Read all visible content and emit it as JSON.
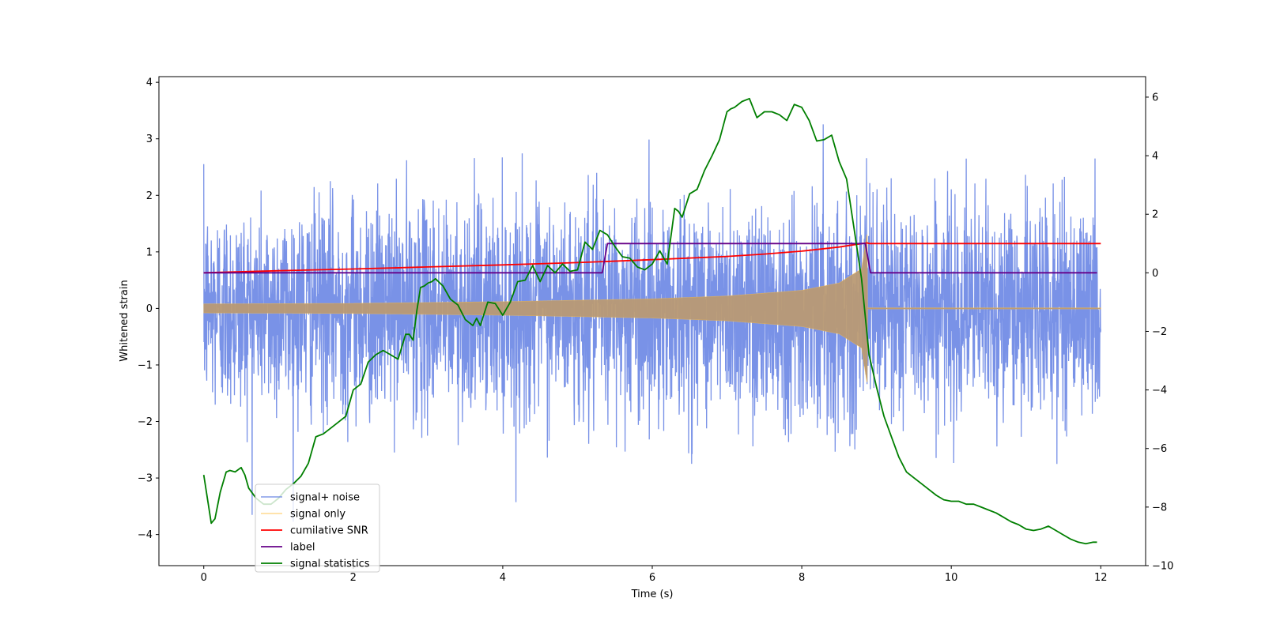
{
  "chart_data": {
    "type": "line",
    "title": "",
    "xlabel": "Time (s)",
    "ylabel": "Whitened strain",
    "y2label": "",
    "xlim": [
      -0.6,
      12.6
    ],
    "ylim": [
      -4.55,
      4.1
    ],
    "y2lim": [
      -10,
      6.7
    ],
    "xticks": [
      0,
      2,
      4,
      6,
      8,
      10,
      12
    ],
    "yticks": [
      -4,
      -3,
      -2,
      -1,
      0,
      1,
      2,
      3,
      4
    ],
    "y2ticks": [
      -10,
      -8,
      -6,
      -4,
      -2,
      0,
      2,
      4,
      6
    ],
    "grid": false,
    "legend_position": "lower-left",
    "colors": {
      "signal_noise": "#6a86e4",
      "signal_only": "#ffbf40",
      "signal_overlap": "#b99a74",
      "snr": "#ff0000",
      "label": "#660088",
      "statistics": "#007f00"
    },
    "series": [
      {
        "name": "signal+ noise",
        "axis": "left",
        "color": "#6a86e4",
        "description_values": {
          "x_range": [
            0,
            12
          ],
          "approx_range": [
            -4.15,
            3.7
          ]
        }
      },
      {
        "name": "signal only",
        "axis": "left",
        "color": "#ffbf40",
        "envelope": {
          "x": [
            0,
            2,
            4,
            6,
            7,
            8,
            8.5,
            8.8,
            8.87
          ],
          "amp": [
            0.08,
            0.09,
            0.12,
            0.17,
            0.22,
            0.32,
            0.45,
            0.7,
            1.3
          ],
          "zero_after": 8.88
        }
      },
      {
        "name": "cumilative SNR",
        "axis": "right",
        "x": [
          0,
          1,
          2,
          3,
          4,
          5,
          6,
          7,
          7.5,
          8,
          8.5,
          8.8,
          8.88,
          8.9,
          12
        ],
        "values": [
          0,
          0.07,
          0.13,
          0.2,
          0.27,
          0.35,
          0.45,
          0.56,
          0.64,
          0.74,
          0.88,
          1.0,
          1.02,
          1.0,
          1.0
        ]
      },
      {
        "name": "label",
        "axis": "right",
        "x": [
          0,
          5.33,
          5.4,
          8.85,
          8.92,
          11.95
        ],
        "values": [
          0,
          0,
          1,
          1,
          0,
          0
        ]
      },
      {
        "name": "signal statistics",
        "axis": "right",
        "x": [
          0,
          0.1,
          0.15,
          0.22,
          0.3,
          0.35,
          0.42,
          0.5,
          0.55,
          0.6,
          0.7,
          0.8,
          0.9,
          1.0,
          1.1,
          1.2,
          1.3,
          1.4,
          1.5,
          1.6,
          1.7,
          1.8,
          1.85,
          1.9,
          2.0,
          2.1,
          2.2,
          2.3,
          2.4,
          2.5,
          2.6,
          2.7,
          2.75,
          2.8,
          2.85,
          2.9,
          2.95,
          3.0,
          3.05,
          3.1,
          3.2,
          3.3,
          3.4,
          3.5,
          3.6,
          3.65,
          3.7,
          3.8,
          3.9,
          4.0,
          4.1,
          4.2,
          4.3,
          4.4,
          4.5,
          4.6,
          4.7,
          4.8,
          4.9,
          5.0,
          5.1,
          5.2,
          5.3,
          5.4,
          5.5,
          5.6,
          5.7,
          5.8,
          5.9,
          6.0,
          6.1,
          6.2,
          6.3,
          6.35,
          6.4,
          6.5,
          6.6,
          6.7,
          6.8,
          6.9,
          7.0,
          7.05,
          7.1,
          7.2,
          7.3,
          7.4,
          7.5,
          7.6,
          7.7,
          7.8,
          7.9,
          8.0,
          8.1,
          8.2,
          8.3,
          8.4,
          8.5,
          8.6,
          8.7,
          8.8,
          8.9,
          9.0,
          9.1,
          9.2,
          9.3,
          9.4,
          9.5,
          9.6,
          9.7,
          9.8,
          9.9,
          10.0,
          10.1,
          10.2,
          10.3,
          10.4,
          10.5,
          10.6,
          10.7,
          10.8,
          10.9,
          11.0,
          11.1,
          11.2,
          11.3,
          11.4,
          11.5,
          11.6,
          11.7,
          11.8,
          11.9,
          11.95
        ],
        "values": [
          -6.9,
          -8.55,
          -8.4,
          -7.5,
          -6.8,
          -6.75,
          -6.8,
          -6.65,
          -6.9,
          -7.35,
          -7.7,
          -7.9,
          -7.9,
          -7.7,
          -7.4,
          -7.2,
          -6.95,
          -6.5,
          -5.6,
          -5.5,
          -5.3,
          -5.1,
          -5.0,
          -4.9,
          -4.0,
          -3.8,
          -3.05,
          -2.8,
          -2.65,
          -2.8,
          -2.95,
          -2.1,
          -2.1,
          -2.3,
          -1.3,
          -0.5,
          -0.45,
          -0.35,
          -0.3,
          -0.2,
          -0.45,
          -0.9,
          -1.1,
          -1.6,
          -1.8,
          -1.55,
          -1.8,
          -1.0,
          -1.05,
          -1.45,
          -1.0,
          -0.3,
          -0.25,
          0.25,
          -0.3,
          0.25,
          0.0,
          0.3,
          0.05,
          0.1,
          1.05,
          0.8,
          1.45,
          1.3,
          0.9,
          0.55,
          0.5,
          0.2,
          0.1,
          0.3,
          0.75,
          0.3,
          2.2,
          2.1,
          1.9,
          2.7,
          2.85,
          3.5,
          4.0,
          4.55,
          5.5,
          5.6,
          5.65,
          5.85,
          5.95,
          5.3,
          5.5,
          5.5,
          5.4,
          5.2,
          5.75,
          5.65,
          5.2,
          4.5,
          4.55,
          4.7,
          3.8,
          3.2,
          1.5,
          -0.2,
          -2.8,
          -3.9,
          -4.9,
          -5.6,
          -6.3,
          -6.8,
          -7.0,
          -7.2,
          -7.4,
          -7.6,
          -7.75,
          -7.8,
          -7.8,
          -7.9,
          -7.9,
          -8.0,
          -8.1,
          -8.2,
          -8.35,
          -8.5,
          -8.6,
          -8.75,
          -8.8,
          -8.75,
          -8.65,
          -8.8,
          -8.95,
          -9.1,
          -9.2,
          -9.25,
          -9.2,
          -9.2
        ]
      }
    ]
  }
}
